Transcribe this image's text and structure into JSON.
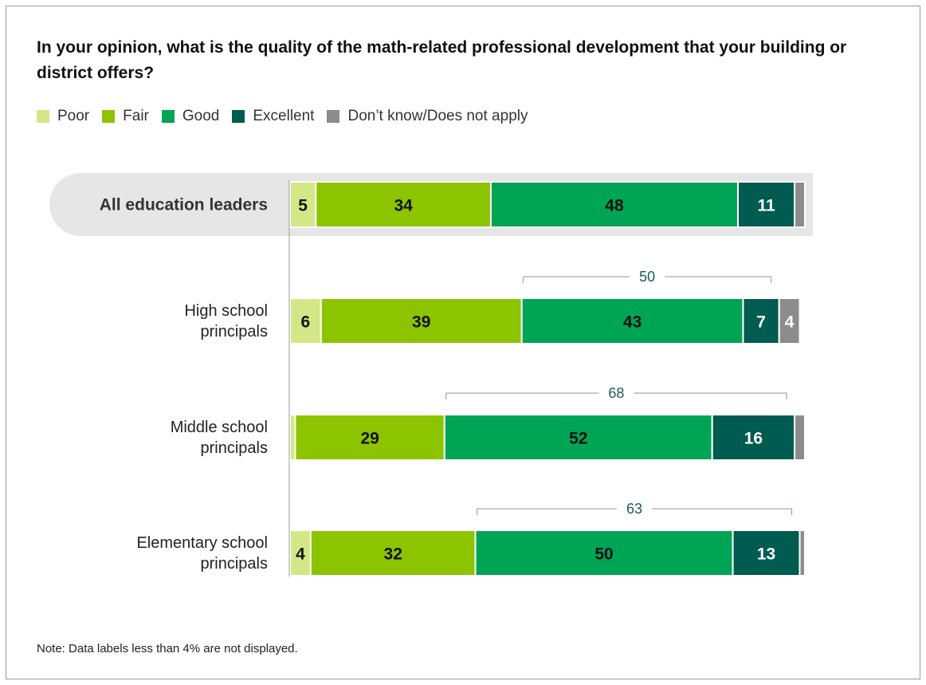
{
  "title": "In your opinion, what is the quality of the math-related professional development that your building or district offers?",
  "note": "Note: Data labels less than 4% are not displayed.",
  "legend": [
    {
      "label": "Poor",
      "color": "#d4e787"
    },
    {
      "label": "Fair",
      "color": "#8dc400"
    },
    {
      "label": "Good",
      "color": "#00a455"
    },
    {
      "label": "Excellent",
      "color": "#005b50"
    },
    {
      "label": "Don’t know/Does not apply",
      "color": "#8c8c8c"
    }
  ],
  "chart_data": {
    "type": "bar",
    "orientation": "horizontal",
    "stacked": true,
    "xlim": [
      0,
      100
    ],
    "categories": [
      "All education leaders",
      "High school principals",
      "Middle school principals",
      "Elementary school principals"
    ],
    "category_lines": [
      [
        "All education leaders"
      ],
      [
        "High school",
        "principals"
      ],
      [
        "Middle school",
        "principals"
      ],
      [
        "Elementary school",
        "principals"
      ]
    ],
    "highlight_category": "All education leaders",
    "series": [
      {
        "name": "Poor",
        "color": "#d4e787",
        "values": [
          5,
          6,
          1,
          4
        ],
        "labels": [
          "5",
          "6",
          "",
          "4"
        ]
      },
      {
        "name": "Fair",
        "color": "#8dc400",
        "values": [
          34,
          39,
          29,
          32
        ],
        "labels": [
          "34",
          "39",
          "29",
          "32"
        ]
      },
      {
        "name": "Good",
        "color": "#00a455",
        "values": [
          48,
          43,
          52,
          50
        ],
        "labels": [
          "48",
          "43",
          "52",
          "50"
        ]
      },
      {
        "name": "Excellent",
        "color": "#005b50",
        "values": [
          11,
          7,
          16,
          13
        ],
        "labels": [
          "11",
          "7",
          "16",
          "13"
        ]
      },
      {
        "name": "Don’t know/Does not apply",
        "color": "#8c8c8c",
        "values": [
          2,
          4,
          2,
          1
        ],
        "labels": [
          "",
          "4",
          "",
          ""
        ]
      }
    ],
    "combined_good_excellent": [
      null,
      50,
      68,
      63
    ]
  }
}
